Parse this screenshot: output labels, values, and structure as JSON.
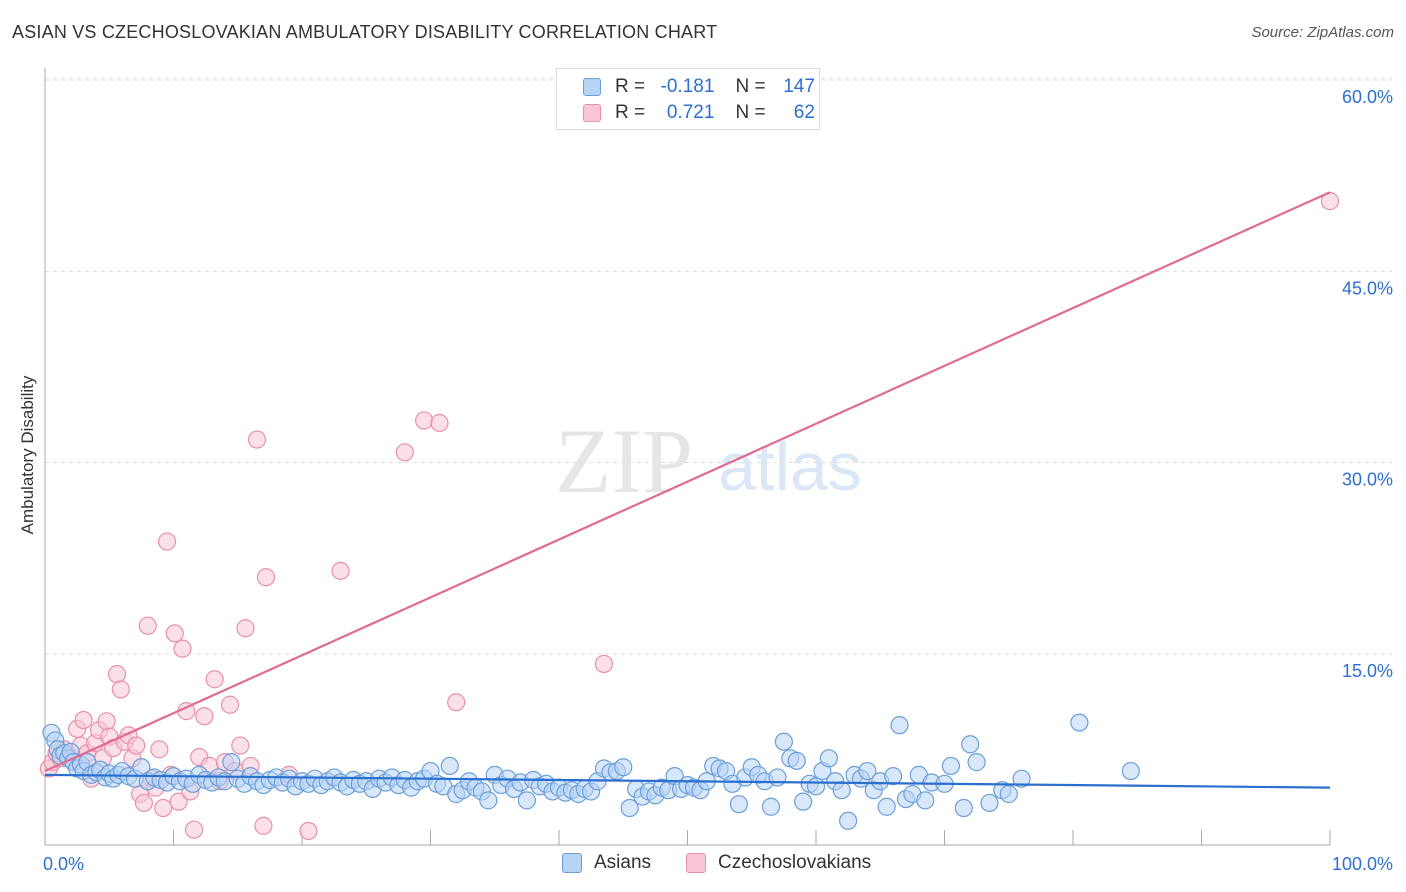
{
  "title": "ASIAN VS CZECHOSLOVAKIAN AMBULATORY DISABILITY CORRELATION CHART",
  "source": "Source: ZipAtlas.com",
  "legend_stats": [
    {
      "r_label": "R =",
      "r_value": "-0.181",
      "n_label": "N =",
      "n_value": "147"
    },
    {
      "r_label": "R =",
      "r_value": "0.721",
      "n_label": "N =",
      "n_value": "62"
    }
  ],
  "watermark": {
    "zip": "ZIP",
    "atlas": "atlas"
  },
  "colors": {
    "blue_fill": "#b8d4f5",
    "blue_stroke": "#6a9fd8",
    "blue_line": "#2b6fcf",
    "pink_fill": "#f8c6d4",
    "pink_stroke": "#e890aa",
    "pink_line": "#e06a92",
    "tick": "#2d6fd0",
    "grid": "#dddddd"
  },
  "chart_data": {
    "type": "scatter",
    "title": "ASIAN VS CZECHOSLOVAKIAN AMBULATORY DISABILITY CORRELATION CHART",
    "xlabel": "",
    "ylabel": "Ambulatory Disability",
    "xlim": [
      0,
      100
    ],
    "ylim": [
      0,
      62
    ],
    "x_tick_labels": [
      {
        "value": 0,
        "label": "0.0%"
      },
      {
        "value": 100,
        "label": "100.0%"
      }
    ],
    "y_tick_labels": [
      {
        "value": 15,
        "label": "15.0%"
      },
      {
        "value": 30,
        "label": "30.0%"
      },
      {
        "value": 45,
        "label": "45.0%"
      },
      {
        "value": 60,
        "label": "60.0%"
      }
    ],
    "series": [
      {
        "name": "Asians",
        "r": -0.181,
        "n": 147,
        "trend": {
          "x0": 0,
          "y0": 5.5,
          "x1": 100,
          "y1": 4.5
        },
        "points": [
          [
            0.5,
            8.8
          ],
          [
            0.8,
            8.2
          ],
          [
            1.0,
            7.5
          ],
          [
            1.2,
            7.0
          ],
          [
            1.5,
            7.2
          ],
          [
            1.8,
            6.8
          ],
          [
            2.0,
            7.3
          ],
          [
            2.2,
            6.5
          ],
          [
            2.5,
            6.0
          ],
          [
            2.8,
            6.3
          ],
          [
            3.0,
            5.8
          ],
          [
            3.3,
            6.5
          ],
          [
            3.6,
            5.5
          ],
          [
            4.0,
            5.7
          ],
          [
            4.3,
            5.9
          ],
          [
            4.7,
            5.3
          ],
          [
            5.0,
            5.6
          ],
          [
            5.3,
            5.2
          ],
          [
            5.7,
            5.5
          ],
          [
            6.0,
            5.8
          ],
          [
            6.5,
            5.4
          ],
          [
            7.0,
            5.2
          ],
          [
            7.5,
            6.1
          ],
          [
            8.0,
            5.0
          ],
          [
            8.5,
            5.3
          ],
          [
            9.0,
            5.1
          ],
          [
            9.5,
            4.9
          ],
          [
            10.0,
            5.4
          ],
          [
            10.5,
            5.0
          ],
          [
            11.0,
            5.2
          ],
          [
            11.5,
            4.8
          ],
          [
            12.0,
            5.5
          ],
          [
            12.5,
            5.1
          ],
          [
            13.0,
            4.9
          ],
          [
            13.5,
            5.3
          ],
          [
            14.0,
            5.0
          ],
          [
            14.5,
            6.5
          ],
          [
            15.0,
            5.2
          ],
          [
            15.5,
            4.8
          ],
          [
            16.0,
            5.4
          ],
          [
            16.5,
            5.0
          ],
          [
            17.0,
            4.7
          ],
          [
            17.5,
            5.1
          ],
          [
            18.0,
            5.3
          ],
          [
            18.5,
            4.9
          ],
          [
            19.0,
            5.2
          ],
          [
            19.5,
            4.6
          ],
          [
            20.0,
            5.0
          ],
          [
            20.5,
            4.8
          ],
          [
            21.0,
            5.2
          ],
          [
            21.5,
            4.7
          ],
          [
            22.0,
            5.0
          ],
          [
            22.5,
            5.3
          ],
          [
            23.0,
            4.9
          ],
          [
            23.5,
            4.6
          ],
          [
            24.0,
            5.1
          ],
          [
            24.5,
            4.8
          ],
          [
            25.0,
            5.0
          ],
          [
            25.5,
            4.4
          ],
          [
            26.0,
            5.2
          ],
          [
            26.5,
            4.9
          ],
          [
            27.0,
            5.3
          ],
          [
            27.5,
            4.7
          ],
          [
            28.0,
            5.1
          ],
          [
            28.5,
            4.5
          ],
          [
            29.0,
            5.0
          ],
          [
            29.5,
            5.2
          ],
          [
            30.0,
            5.8
          ],
          [
            30.5,
            4.8
          ],
          [
            31.0,
            4.6
          ],
          [
            31.5,
            6.2
          ],
          [
            32.0,
            4.0
          ],
          [
            32.5,
            4.3
          ],
          [
            33.0,
            5.0
          ],
          [
            33.5,
            4.5
          ],
          [
            34.0,
            4.2
          ],
          [
            34.5,
            3.5
          ],
          [
            35.0,
            5.5
          ],
          [
            35.5,
            4.7
          ],
          [
            36.0,
            5.2
          ],
          [
            36.5,
            4.4
          ],
          [
            37.0,
            4.9
          ],
          [
            37.5,
            3.5
          ],
          [
            38.0,
            5.1
          ],
          [
            38.5,
            4.6
          ],
          [
            39.0,
            4.8
          ],
          [
            39.5,
            4.2
          ],
          [
            40.0,
            4.5
          ],
          [
            40.5,
            4.1
          ],
          [
            41.0,
            4.3
          ],
          [
            41.5,
            4.0
          ],
          [
            42.0,
            4.4
          ],
          [
            42.5,
            4.2
          ],
          [
            43.0,
            5.0
          ],
          [
            43.5,
            6.0
          ],
          [
            44.0,
            5.7
          ],
          [
            44.5,
            5.8
          ],
          [
            45.0,
            6.1
          ],
          [
            45.5,
            2.9
          ],
          [
            46.0,
            4.4
          ],
          [
            46.5,
            3.8
          ],
          [
            47.0,
            4.2
          ],
          [
            47.5,
            3.9
          ],
          [
            48.0,
            4.5
          ],
          [
            48.5,
            4.3
          ],
          [
            49.0,
            5.4
          ],
          [
            49.5,
            4.4
          ],
          [
            50.0,
            4.7
          ],
          [
            50.5,
            4.5
          ],
          [
            51.0,
            4.3
          ],
          [
            51.5,
            5.0
          ],
          [
            52.0,
            6.2
          ],
          [
            52.5,
            6.0
          ],
          [
            53.0,
            5.8
          ],
          [
            53.5,
            4.8
          ],
          [
            54.0,
            3.2
          ],
          [
            54.5,
            5.3
          ],
          [
            55.0,
            6.1
          ],
          [
            55.5,
            5.5
          ],
          [
            56.0,
            5.0
          ],
          [
            56.5,
            3.0
          ],
          [
            57.0,
            5.3
          ],
          [
            57.5,
            8.1
          ],
          [
            58.0,
            6.8
          ],
          [
            58.5,
            6.6
          ],
          [
            59.0,
            3.4
          ],
          [
            59.5,
            4.8
          ],
          [
            60.0,
            4.6
          ],
          [
            60.5,
            5.8
          ],
          [
            61.0,
            6.8
          ],
          [
            61.5,
            5.0
          ],
          [
            62.0,
            4.3
          ],
          [
            62.5,
            1.9
          ],
          [
            63.0,
            5.5
          ],
          [
            63.5,
            5.2
          ],
          [
            64.0,
            5.8
          ],
          [
            64.5,
            4.3
          ],
          [
            65.0,
            5.0
          ],
          [
            65.5,
            3.0
          ],
          [
            66.0,
            5.4
          ],
          [
            66.5,
            9.4
          ],
          [
            67.0,
            3.6
          ],
          [
            67.5,
            4.0
          ],
          [
            68.0,
            5.5
          ],
          [
            68.5,
            3.5
          ],
          [
            69.0,
            4.9
          ],
          [
            70.5,
            6.2
          ],
          [
            71.5,
            2.9
          ],
          [
            72.0,
            7.9
          ],
          [
            73.5,
            3.3
          ],
          [
            74.5,
            4.3
          ],
          [
            80.5,
            9.6
          ],
          [
            84.5,
            5.8
          ],
          [
            75.0,
            4.0
          ],
          [
            72.5,
            6.5
          ],
          [
            76.0,
            5.2
          ],
          [
            70.0,
            4.8
          ]
        ]
      },
      {
        "name": "Czechoslovakians",
        "r": 0.721,
        "n": 62,
        "trend": {
          "x0": 0,
          "y0": 5.8,
          "x1": 100,
          "y1": 51.2
        },
        "points": [
          [
            0.3,
            6.0
          ],
          [
            0.6,
            6.5
          ],
          [
            0.9,
            7.2
          ],
          [
            1.2,
            6.8
          ],
          [
            1.5,
            7.5
          ],
          [
            1.8,
            7.0
          ],
          [
            2.2,
            6.6
          ],
          [
            2.5,
            9.1
          ],
          [
            2.8,
            7.8
          ],
          [
            3.0,
            9.8
          ],
          [
            3.3,
            7.2
          ],
          [
            3.6,
            5.2
          ],
          [
            3.9,
            8.0
          ],
          [
            4.2,
            9.0
          ],
          [
            4.5,
            6.8
          ],
          [
            4.8,
            9.7
          ],
          [
            5.0,
            8.5
          ],
          [
            5.3,
            7.6
          ],
          [
            5.6,
            13.4
          ],
          [
            5.9,
            12.2
          ],
          [
            6.2,
            8.1
          ],
          [
            6.5,
            8.6
          ],
          [
            6.8,
            6.8
          ],
          [
            7.1,
            7.8
          ],
          [
            7.4,
            4.0
          ],
          [
            7.7,
            3.3
          ],
          [
            8.0,
            17.2
          ],
          [
            8.3,
            5.2
          ],
          [
            8.6,
            4.5
          ],
          [
            8.9,
            7.5
          ],
          [
            9.2,
            2.9
          ],
          [
            9.5,
            23.8
          ],
          [
            9.8,
            5.5
          ],
          [
            10.1,
            16.6
          ],
          [
            10.4,
            3.4
          ],
          [
            10.7,
            15.4
          ],
          [
            11.0,
            10.5
          ],
          [
            11.3,
            4.2
          ],
          [
            11.6,
            1.2
          ],
          [
            12.0,
            6.9
          ],
          [
            12.4,
            10.1
          ],
          [
            12.8,
            6.2
          ],
          [
            13.2,
            13.0
          ],
          [
            13.6,
            5.0
          ],
          [
            14.0,
            6.5
          ],
          [
            14.4,
            11.0
          ],
          [
            14.8,
            5.8
          ],
          [
            15.2,
            7.8
          ],
          [
            15.6,
            17.0
          ],
          [
            16.0,
            6.2
          ],
          [
            16.5,
            31.8
          ],
          [
            17.0,
            1.5
          ],
          [
            17.2,
            21.0
          ],
          [
            19.0,
            5.5
          ],
          [
            20.5,
            1.1
          ],
          [
            23.0,
            21.5
          ],
          [
            28.0,
            30.8
          ],
          [
            29.5,
            33.3
          ],
          [
            30.7,
            33.1
          ],
          [
            32.0,
            11.2
          ],
          [
            43.5,
            14.2
          ],
          [
            100.0,
            50.5
          ]
        ]
      }
    ]
  }
}
